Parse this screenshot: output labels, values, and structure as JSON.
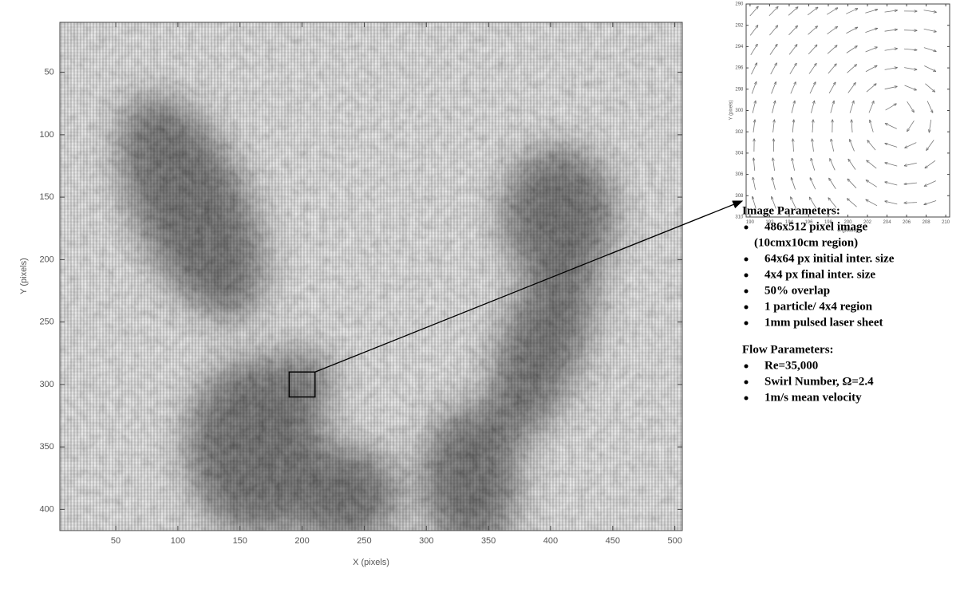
{
  "main_plot": {
    "xlabel": "X (pixels)",
    "ylabel": "Y (pixels)",
    "xlim": [
      5,
      506
    ],
    "ylim": [
      10,
      417
    ],
    "xticks": [
      50,
      100,
      150,
      200,
      250,
      300,
      350,
      400,
      450,
      500
    ],
    "yticks": [
      50,
      100,
      150,
      200,
      250,
      300,
      350,
      400
    ]
  },
  "inset": {
    "xlabel": "X (pixels)",
    "ylabel": "Y (pixels)",
    "xlim": [
      189.6,
      210.4
    ],
    "ylim": [
      290,
      310
    ],
    "xticks": [
      190,
      192,
      194,
      196,
      198,
      200,
      202,
      204,
      206,
      208,
      210
    ],
    "yticks": [
      290,
      292,
      294,
      296,
      298,
      300,
      302,
      304,
      306,
      308,
      310
    ]
  },
  "image_parameters": {
    "title": "Image Parameters:",
    "items": [
      [
        "486x512 pixel image",
        "(10cmx10cm region)"
      ],
      [
        "64x64 px initial inter. size"
      ],
      [
        "4x4 px final inter. size"
      ],
      [
        "50% overlap"
      ],
      [
        "1 particle/ 4x4 region"
      ],
      [
        "1mm pulsed laser sheet"
      ]
    ]
  },
  "flow_parameters": {
    "title": "Flow Parameters:",
    "items": [
      [
        "Re=35,000"
      ],
      [
        "Swirl Number, Ω=2.4"
      ],
      [
        "1m/s mean velocity"
      ]
    ]
  }
}
